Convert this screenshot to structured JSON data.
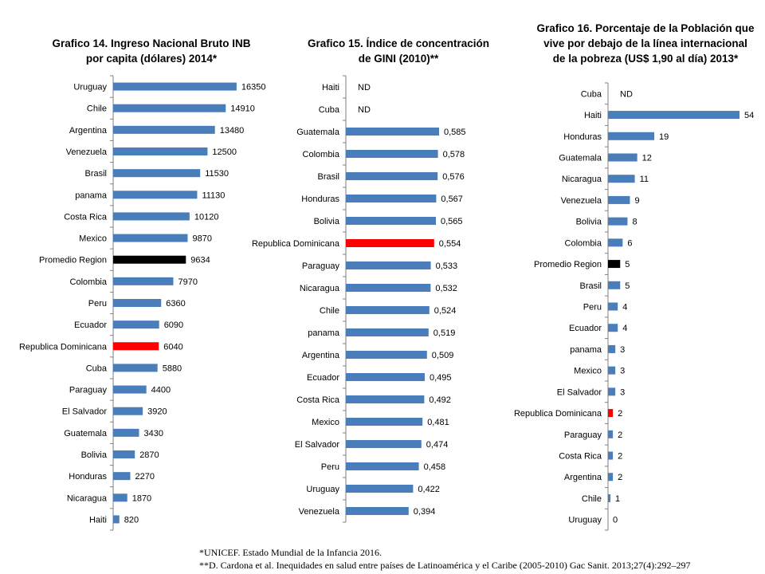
{
  "colors": {
    "default": "#4a7ebb",
    "highlight": "#ff0000",
    "average": "#000000",
    "axis": "#7f7f7f"
  },
  "chart_data": [
    {
      "type": "bar",
      "orientation": "horizontal",
      "title_lines": [
        "Grafico 14. Ingreso Nacional Bruto INB",
        "por capita (dólares) 2014*"
      ],
      "categories": [
        "Uruguay",
        "Chile",
        "Argentina",
        "Venezuela",
        "Brasil",
        "panama",
        "Costa Rica",
        "Mexico",
        "Promedio Region",
        "Colombia",
        "Peru",
        "Ecuador",
        "Republica Dominicana",
        "Cuba",
        "Paraguay",
        "El Salvador",
        "Guatemala",
        "Bolivia",
        "Honduras",
        "Nicaragua",
        "Haiti"
      ],
      "values": [
        16350,
        14910,
        13480,
        12500,
        11530,
        11130,
        10120,
        9870,
        9634,
        7970,
        6360,
        6090,
        6040,
        5880,
        4400,
        3920,
        3430,
        2870,
        2270,
        1870,
        820
      ],
      "labels": [
        "16350",
        "14910",
        "13480",
        "12500",
        "11530",
        "11130",
        "10120",
        "9870",
        "9634",
        "7970",
        "6360",
        "6090",
        "6040",
        "5880",
        "4400",
        "3920",
        "3430",
        "2870",
        "2270",
        "1870",
        "820"
      ],
      "bar_colors": [
        "default",
        "default",
        "default",
        "default",
        "default",
        "default",
        "default",
        "default",
        "average",
        "default",
        "default",
        "default",
        "highlight",
        "default",
        "default",
        "default",
        "default",
        "default",
        "default",
        "default",
        "default"
      ],
      "xlim": [
        0,
        19000
      ]
    },
    {
      "type": "bar",
      "orientation": "horizontal",
      "title_lines": [
        "Grafico 15. Índice de concentración",
        "de GINI (2010)**"
      ],
      "categories": [
        "Haiti",
        "Cuba",
        "Guatemala",
        "Colombia",
        "Brasil",
        "Honduras",
        "Bolivia",
        "Republica Dominicana",
        "Paraguay",
        "Nicaragua",
        "Chile",
        "panama",
        "Argentina",
        "Ecuador",
        "Costa Rica",
        "Mexico",
        "El Salvador",
        "Peru",
        "Uruguay",
        "Venezuela"
      ],
      "values": [
        null,
        null,
        0.585,
        0.578,
        0.576,
        0.567,
        0.565,
        0.554,
        0.533,
        0.532,
        0.524,
        0.519,
        0.509,
        0.495,
        0.492,
        0.481,
        0.474,
        0.458,
        0.422,
        0.394
      ],
      "labels": [
        "ND",
        "ND",
        "0,585",
        "0,578",
        "0,576",
        "0,567",
        "0,565",
        "0,554",
        "0,533",
        "0,532",
        "0,524",
        "0,519",
        "0,509",
        "0,495",
        "0,492",
        "0,481",
        "0,474",
        "0,458",
        "0,422",
        "0,394"
      ],
      "bar_colors": [
        "default",
        "default",
        "default",
        "default",
        "default",
        "default",
        "default",
        "highlight",
        "default",
        "default",
        "default",
        "default",
        "default",
        "default",
        "default",
        "default",
        "default",
        "default",
        "default",
        "default"
      ],
      "xlim": [
        0,
        0.66
      ]
    },
    {
      "type": "bar",
      "orientation": "horizontal",
      "title_lines": [
        "Grafico 16. Porcentaje de la Población que",
        "vive por debajo de la línea internacional",
        "de la pobreza (US$ 1,90  al día) 2013*"
      ],
      "categories": [
        "Cuba",
        "Haiti",
        "Honduras",
        "Guatemala",
        "Nicaragua",
        "Venezuela",
        "Bolivia",
        "Colombia",
        "Promedio Region",
        "Brasil",
        "Peru",
        "Ecuador",
        "panama",
        "Mexico",
        "El Salvador",
        "Republica Dominicana",
        "Paraguay",
        "Costa Rica",
        "Argentina",
        "Chile",
        "Uruguay"
      ],
      "values": [
        null,
        54,
        19,
        12,
        11,
        9,
        8,
        6,
        5,
        5,
        4,
        4,
        3,
        3,
        3,
        2,
        2,
        2,
        2,
        1,
        0
      ],
      "labels": [
        "ND",
        "54",
        "19",
        "12",
        "11",
        "9",
        "8",
        "6",
        "5",
        "5",
        "4",
        "4",
        "3",
        "3",
        "3",
        "2",
        "2",
        "2",
        "2",
        "1",
        "0"
      ],
      "bar_colors": [
        "default",
        "default",
        "default",
        "default",
        "default",
        "default",
        "default",
        "default",
        "average",
        "default",
        "default",
        "default",
        "default",
        "default",
        "default",
        "highlight",
        "default",
        "default",
        "default",
        "default",
        "default"
      ],
      "xlim": [
        0,
        54
      ]
    }
  ],
  "footnotes": [
    "*UNICEF.  Estado  Mundial de la Infancia 2016.",
    "**D.  Cardona et al. Inequidades en salud entre países de Latinoamérica y el Caribe (2005-2010) Gac Sanit. 2013;27(4):292–297"
  ]
}
